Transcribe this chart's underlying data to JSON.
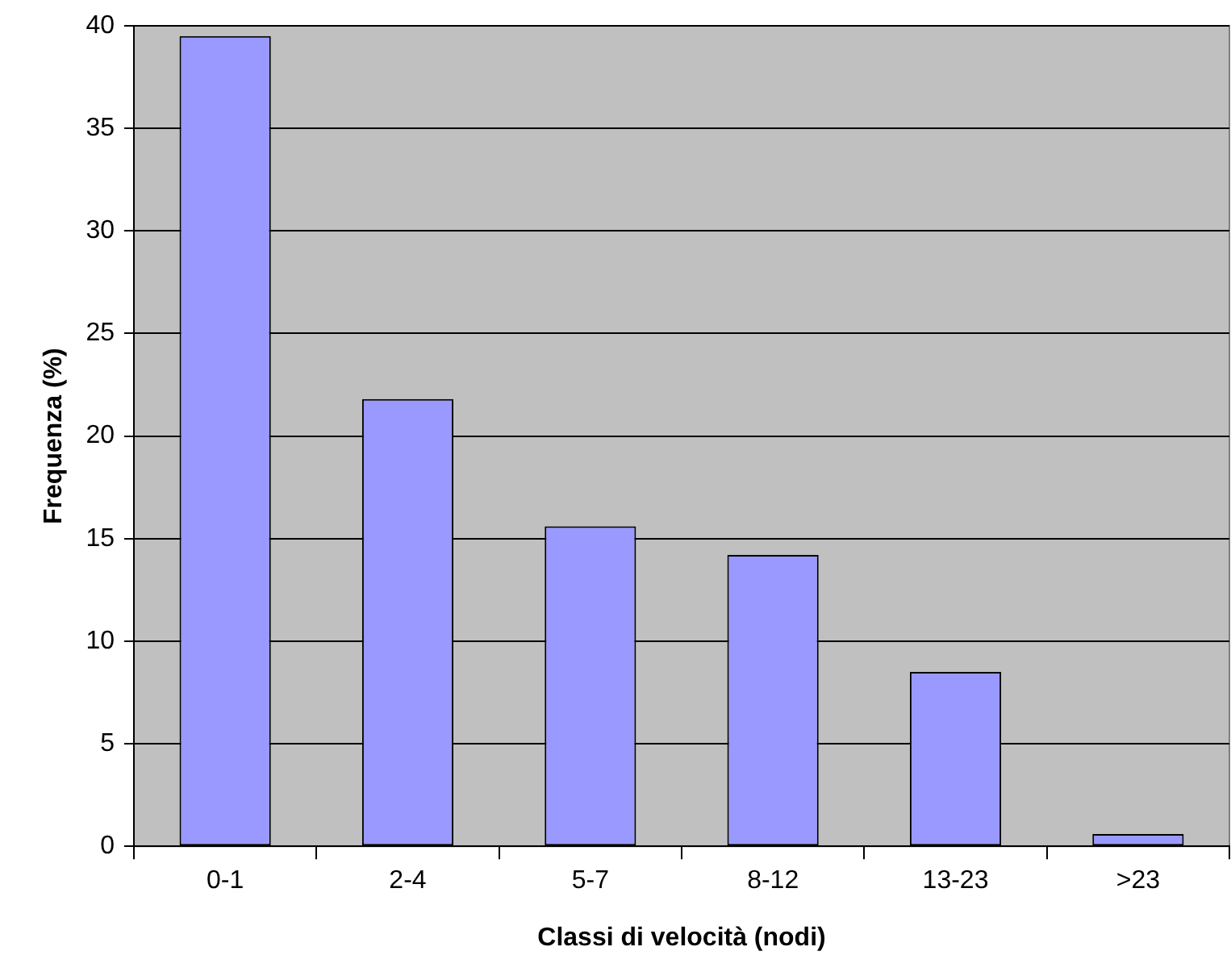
{
  "chart_data": {
    "type": "bar",
    "xlabel": "Classi di velocità (nodi)",
    "ylabel": "Frequenza (%)",
    "categories": [
      "0-1",
      "2-4",
      "5-7",
      "8-12",
      "13-23",
      ">23"
    ],
    "values": [
      39.5,
      21.8,
      15.6,
      14.2,
      8.5,
      0.6
    ],
    "color": "#9999ff",
    "ylim": [
      0,
      40
    ],
    "yticks": [
      0,
      5,
      10,
      15,
      20,
      25,
      30,
      35,
      40
    ],
    "grid": "y",
    "legend": false
  }
}
